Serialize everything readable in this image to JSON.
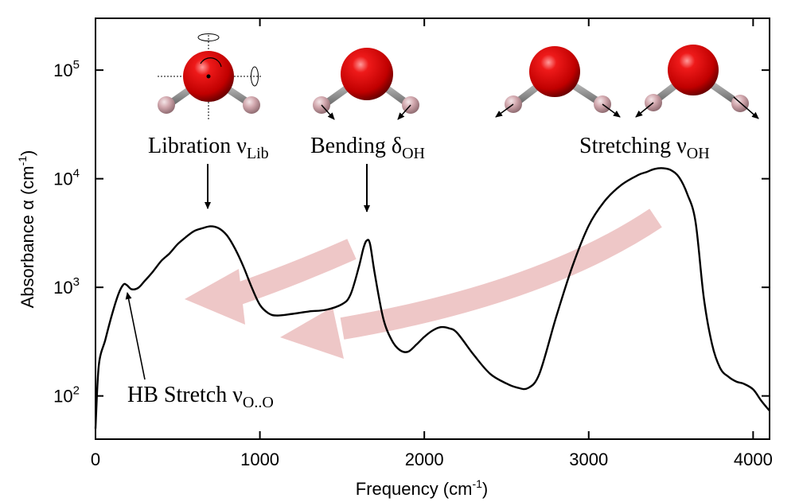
{
  "chart_data": {
    "type": "line",
    "title": "",
    "xlabel": "Frequency (cm",
    "xlabel_sup": "-1",
    "xlabel_end": ")",
    "ylabel": "Absorbance α (cm",
    "ylabel_sup": "-1",
    "ylabel_end": ")",
    "xlim": [
      0,
      4100
    ],
    "ylim": [
      40,
      300000
    ],
    "yscale": "log",
    "grid": false,
    "x_ticks": [
      0,
      1000,
      2000,
      3000,
      4000
    ],
    "x_tick_labels": [
      "0",
      "1000",
      "2000",
      "3000",
      "4000"
    ],
    "y_ticks": [
      100,
      1000,
      10000,
      100000
    ],
    "y_tick_base": "10",
    "y_tick_exps": [
      "2",
      "3",
      "4",
      "5"
    ],
    "series": [
      {
        "color": "#000000",
        "x": [
          0,
          20,
          60,
          100,
          140,
          170,
          190,
          220,
          260,
          300,
          350,
          400,
          450,
          500,
          550,
          600,
          650,
          700,
          750,
          800,
          850,
          900,
          950,
          1000,
          1050,
          1100,
          1200,
          1300,
          1400,
          1500,
          1550,
          1600,
          1630,
          1650,
          1670,
          1700,
          1750,
          1800,
          1850,
          1900,
          1950,
          2000,
          2050,
          2100,
          2150,
          2200,
          2300,
          2400,
          2500,
          2560,
          2630,
          2700,
          2800,
          2900,
          3000,
          3100,
          3200,
          3300,
          3350,
          3400,
          3450,
          3500,
          3550,
          3600,
          3650,
          3700,
          3750,
          3800,
          3850,
          3900,
          3940,
          4000,
          4050,
          4100
        ],
        "y": [
          50,
          190,
          330,
          560,
          870,
          1060,
          1050,
          960,
          990,
          1150,
          1400,
          1750,
          2050,
          2500,
          2900,
          3300,
          3500,
          3650,
          3500,
          3000,
          2250,
          1550,
          1000,
          690,
          580,
          550,
          570,
          600,
          620,
          700,
          850,
          1500,
          2300,
          2700,
          2500,
          1300,
          520,
          330,
          265,
          255,
          295,
          350,
          400,
          430,
          420,
          380,
          240,
          160,
          130,
          120,
          118,
          160,
          520,
          1550,
          3700,
          6300,
          8800,
          10800,
          11500,
          12300,
          12500,
          12000,
          10300,
          7200,
          4000,
          800,
          300,
          180,
          150,
          135,
          130,
          115,
          90,
          73
        ]
      }
    ],
    "annotations": [
      {
        "text": "Libration ν",
        "sub": "Lib",
        "target_x": 700,
        "target_y": 3650
      },
      {
        "text": "Bending δ",
        "sub": "OH",
        "target_x": 1650,
        "target_y": 2700
      },
      {
        "text": "Stretching ν",
        "sub": "OH"
      },
      {
        "text": "HB Stretch ν",
        "sub": "O..O",
        "target_x": 190,
        "target_y": 1050
      }
    ],
    "colors": {
      "line": "#000000",
      "arrow": "#e8b4b4",
      "oxygen": "#d40000",
      "hydrogen": "#c8a2a8"
    },
    "icons": [
      "water-libration-icon",
      "water-bending-icon",
      "water-symmetric-stretch-icon",
      "water-asymmetric-stretch-icon"
    ]
  }
}
